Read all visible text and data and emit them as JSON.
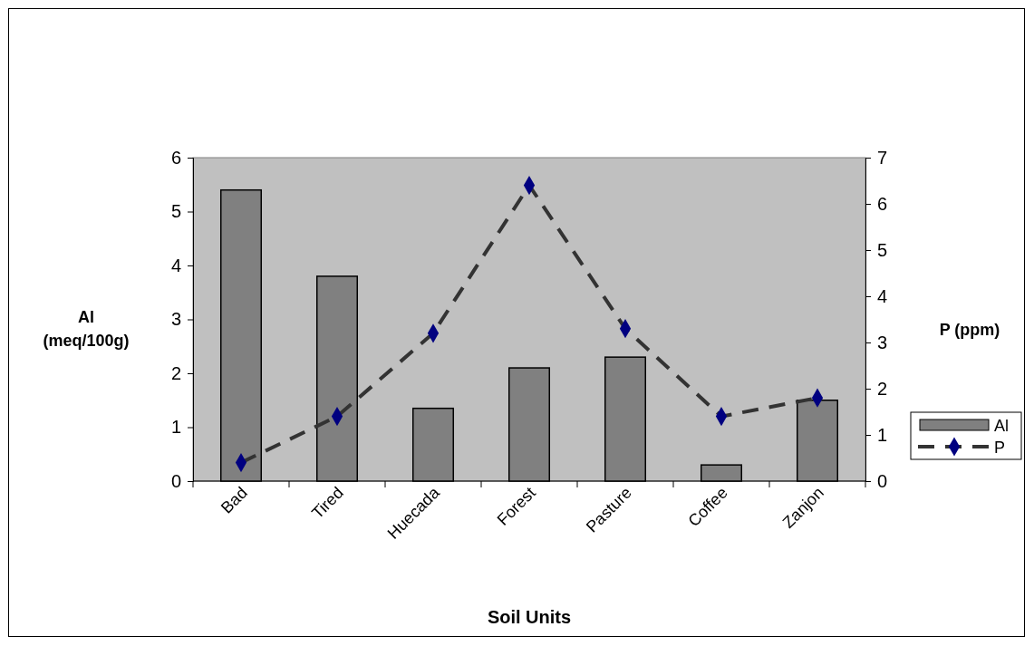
{
  "chart_data": {
    "type": "bar",
    "xlabel": "Soil Units",
    "ylabel": "Al\n(meq/100g)",
    "y2label": "P (ppm)",
    "categories": [
      "Bad",
      "Tired",
      "Huecada",
      "Forest",
      "Pasture",
      "Coffee",
      "Zanjon"
    ],
    "series": [
      {
        "name": "Al",
        "color": "#808080",
        "values": [
          5.4,
          3.8,
          1.35,
          2.1,
          2.3,
          0.3,
          1.5
        ]
      },
      {
        "name": "P",
        "type": "line",
        "axis": "y2",
        "color": "#333333",
        "line_style": "dashed",
        "marker": "diamond",
        "values": [
          0.4,
          1.4,
          3.2,
          6.4,
          3.3,
          1.4,
          1.8
        ]
      }
    ],
    "ylim": [
      0,
      6
    ],
    "yticks": [
      0,
      1,
      2,
      3,
      4,
      5,
      6
    ],
    "y2lim": [
      0,
      7
    ],
    "y2ticks": [
      0,
      1,
      2,
      3,
      4,
      5,
      6,
      7
    ],
    "grid": false,
    "legend": "right"
  }
}
